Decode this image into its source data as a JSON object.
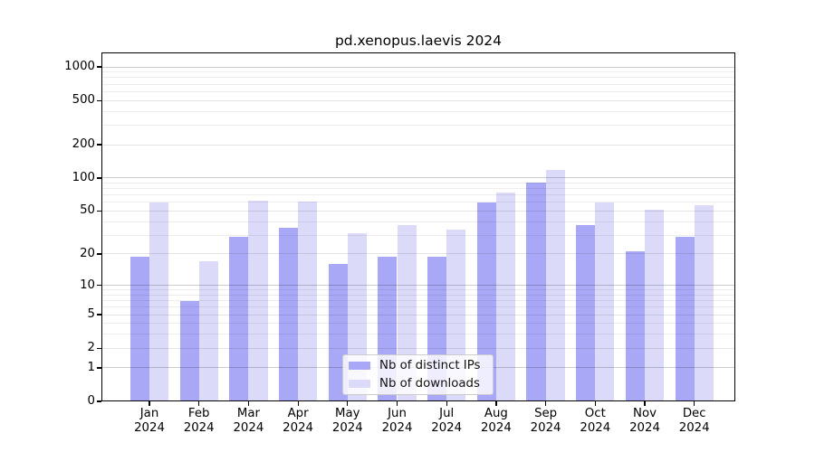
{
  "title": "pd.xenopus.laevis 2024",
  "colors": {
    "ips_bar": "#a8a8f7",
    "downloads_bar": "#dbdbf9",
    "axis": "#000000",
    "grid_major": "#cccccc",
    "grid_minor": "#ededed",
    "legend_border": "#cccccc"
  },
  "y_axis": {
    "tick_labels": [
      "0",
      "1",
      "2",
      "5",
      "10",
      "20",
      "50",
      "100",
      "200",
      "500",
      "1000"
    ]
  },
  "x_axis": {
    "months": [
      "Jan",
      "Feb",
      "Mar",
      "Apr",
      "May",
      "Jun",
      "Jul",
      "Aug",
      "Sep",
      "Oct",
      "Nov",
      "Dec"
    ],
    "year": "2024"
  },
  "legend": {
    "items": [
      {
        "series": "ips",
        "label": "Nb of distinct IPs"
      },
      {
        "series": "downloads",
        "label": "Nb of downloads"
      }
    ]
  },
  "chart_data": {
    "type": "bar",
    "title": "pd.xenopus.laevis 2024",
    "categories": [
      "Jan 2024",
      "Feb 2024",
      "Mar 2024",
      "Apr 2024",
      "May 2024",
      "Jun 2024",
      "Jul 2024",
      "Aug 2024",
      "Sep 2024",
      "Oct 2024",
      "Nov 2024",
      "Dec 2024"
    ],
    "series": [
      {
        "name": "Nb of distinct IPs",
        "color": "#a8a8f7",
        "values": [
          19,
          7,
          29,
          35,
          16,
          19,
          19,
          60,
          91,
          37,
          21,
          29
        ]
      },
      {
        "name": "Nb of downloads",
        "color": "#dbdbf9",
        "values": [
          60,
          17,
          62,
          61,
          31,
          37,
          34,
          74,
          118,
          60,
          51,
          57
        ]
      }
    ],
    "xlabel": "",
    "ylabel": "",
    "y_scale": "log1p",
    "y_ticks": [
      0,
      1,
      2,
      5,
      10,
      20,
      50,
      100,
      200,
      500,
      1000
    ],
    "ylim": [
      0,
      1350
    ],
    "grid": true,
    "legend_position": "bottom-center"
  }
}
